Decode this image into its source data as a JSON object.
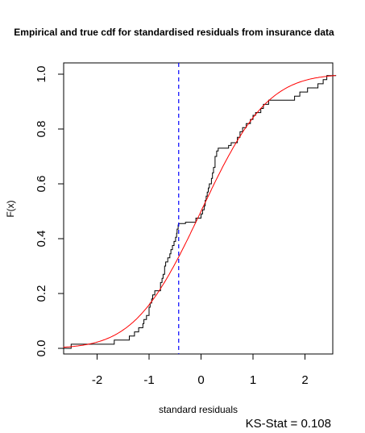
{
  "chart_data": {
    "type": "line",
    "title": "Empirical and true cdf for standardised residuals from insurance data",
    "xlabel": "standard residuals",
    "ylabel": "F(x)",
    "xlim": [
      -2.65,
      2.6
    ],
    "ylim": [
      -0.02,
      1.0
    ],
    "x_ticks": [
      -2,
      -1,
      0,
      1,
      2
    ],
    "y_ticks": [
      0.0,
      0.2,
      0.4,
      0.6,
      0.8,
      1.0
    ],
    "x_tick_labels": [
      "-2",
      "-1",
      "0",
      "1",
      "2"
    ],
    "y_tick_labels": [
      "0.0",
      "0.2",
      "0.4",
      "0.6",
      "0.8",
      "1.0"
    ],
    "grid": false,
    "series": [
      {
        "style": "step",
        "color": "#000000",
        "points": [
          [
            -2.65,
            0.0
          ],
          [
            -2.5,
            0.0
          ],
          [
            -2.5,
            0.015
          ],
          [
            -1.67,
            0.015
          ],
          [
            -1.67,
            0.03
          ],
          [
            -1.38,
            0.03
          ],
          [
            -1.38,
            0.045
          ],
          [
            -1.28,
            0.045
          ],
          [
            -1.28,
            0.06
          ],
          [
            -1.2,
            0.06
          ],
          [
            -1.2,
            0.075
          ],
          [
            -1.12,
            0.075
          ],
          [
            -1.12,
            0.09
          ],
          [
            -1.1,
            0.09
          ],
          [
            -1.1,
            0.105
          ],
          [
            -1.05,
            0.105
          ],
          [
            -1.05,
            0.12
          ],
          [
            -1.0,
            0.12
          ],
          [
            -1.0,
            0.15
          ],
          [
            -0.98,
            0.15
          ],
          [
            -0.98,
            0.165
          ],
          [
            -0.95,
            0.165
          ],
          [
            -0.95,
            0.18
          ],
          [
            -0.93,
            0.18
          ],
          [
            -0.93,
            0.195
          ],
          [
            -0.89,
            0.195
          ],
          [
            -0.89,
            0.21
          ],
          [
            -0.78,
            0.21
          ],
          [
            -0.78,
            0.24
          ],
          [
            -0.75,
            0.24
          ],
          [
            -0.75,
            0.255
          ],
          [
            -0.73,
            0.255
          ],
          [
            -0.73,
            0.27
          ],
          [
            -0.7,
            0.27
          ],
          [
            -0.7,
            0.3
          ],
          [
            -0.68,
            0.3
          ],
          [
            -0.68,
            0.315
          ],
          [
            -0.64,
            0.315
          ],
          [
            -0.64,
            0.33
          ],
          [
            -0.6,
            0.33
          ],
          [
            -0.6,
            0.345
          ],
          [
            -0.58,
            0.345
          ],
          [
            -0.58,
            0.36
          ],
          [
            -0.55,
            0.36
          ],
          [
            -0.55,
            0.375
          ],
          [
            -0.52,
            0.375
          ],
          [
            -0.52,
            0.39
          ],
          [
            -0.49,
            0.39
          ],
          [
            -0.49,
            0.405
          ],
          [
            -0.47,
            0.405
          ],
          [
            -0.47,
            0.42
          ],
          [
            -0.46,
            0.42
          ],
          [
            -0.46,
            0.435
          ],
          [
            -0.44,
            0.435
          ],
          [
            -0.44,
            0.45
          ],
          [
            -0.43,
            0.45
          ],
          [
            -0.43,
            0.455
          ],
          [
            -0.3,
            0.455
          ],
          [
            -0.3,
            0.46
          ],
          [
            -0.1,
            0.46
          ],
          [
            -0.1,
            0.475
          ],
          [
            0.0,
            0.475
          ],
          [
            0.0,
            0.49
          ],
          [
            0.03,
            0.49
          ],
          [
            0.03,
            0.505
          ],
          [
            0.06,
            0.505
          ],
          [
            0.06,
            0.52
          ],
          [
            0.08,
            0.52
          ],
          [
            0.08,
            0.54
          ],
          [
            0.1,
            0.54
          ],
          [
            0.1,
            0.555
          ],
          [
            0.12,
            0.555
          ],
          [
            0.12,
            0.57
          ],
          [
            0.14,
            0.57
          ],
          [
            0.14,
            0.585
          ],
          [
            0.16,
            0.585
          ],
          [
            0.16,
            0.6
          ],
          [
            0.2,
            0.6
          ],
          [
            0.2,
            0.62
          ],
          [
            0.22,
            0.62
          ],
          [
            0.22,
            0.64
          ],
          [
            0.24,
            0.64
          ],
          [
            0.24,
            0.66
          ],
          [
            0.27,
            0.66
          ],
          [
            0.27,
            0.7
          ],
          [
            0.3,
            0.7
          ],
          [
            0.3,
            0.72
          ],
          [
            0.33,
            0.72
          ],
          [
            0.33,
            0.73
          ],
          [
            0.53,
            0.73
          ],
          [
            0.53,
            0.74
          ],
          [
            0.58,
            0.74
          ],
          [
            0.58,
            0.75
          ],
          [
            0.7,
            0.75
          ],
          [
            0.7,
            0.77
          ],
          [
            0.75,
            0.77
          ],
          [
            0.75,
            0.79
          ],
          [
            0.8,
            0.79
          ],
          [
            0.8,
            0.805
          ],
          [
            0.87,
            0.805
          ],
          [
            0.87,
            0.82
          ],
          [
            0.95,
            0.82
          ],
          [
            0.95,
            0.835
          ],
          [
            1.0,
            0.835
          ],
          [
            1.0,
            0.85
          ],
          [
            1.05,
            0.85
          ],
          [
            1.05,
            0.86
          ],
          [
            1.15,
            0.86
          ],
          [
            1.15,
            0.875
          ],
          [
            1.2,
            0.875
          ],
          [
            1.2,
            0.89
          ],
          [
            1.3,
            0.89
          ],
          [
            1.3,
            0.905
          ],
          [
            1.8,
            0.905
          ],
          [
            1.8,
            0.92
          ],
          [
            1.9,
            0.92
          ],
          [
            1.9,
            0.935
          ],
          [
            2.05,
            0.935
          ],
          [
            2.05,
            0.95
          ],
          [
            2.25,
            0.95
          ],
          [
            2.25,
            0.965
          ],
          [
            2.35,
            0.965
          ],
          [
            2.35,
            0.98
          ],
          [
            2.42,
            0.98
          ],
          [
            2.42,
            0.995
          ],
          [
            2.6,
            0.995
          ]
        ]
      },
      {
        "style": "curve",
        "color": "#ff0000",
        "function": "normal_cdf",
        "mean": 0,
        "sd": 1
      }
    ],
    "vline": {
      "x": -0.43,
      "color": "#0000ff",
      "dash": true
    },
    "annotation": "KS-Stat = 0.108"
  }
}
